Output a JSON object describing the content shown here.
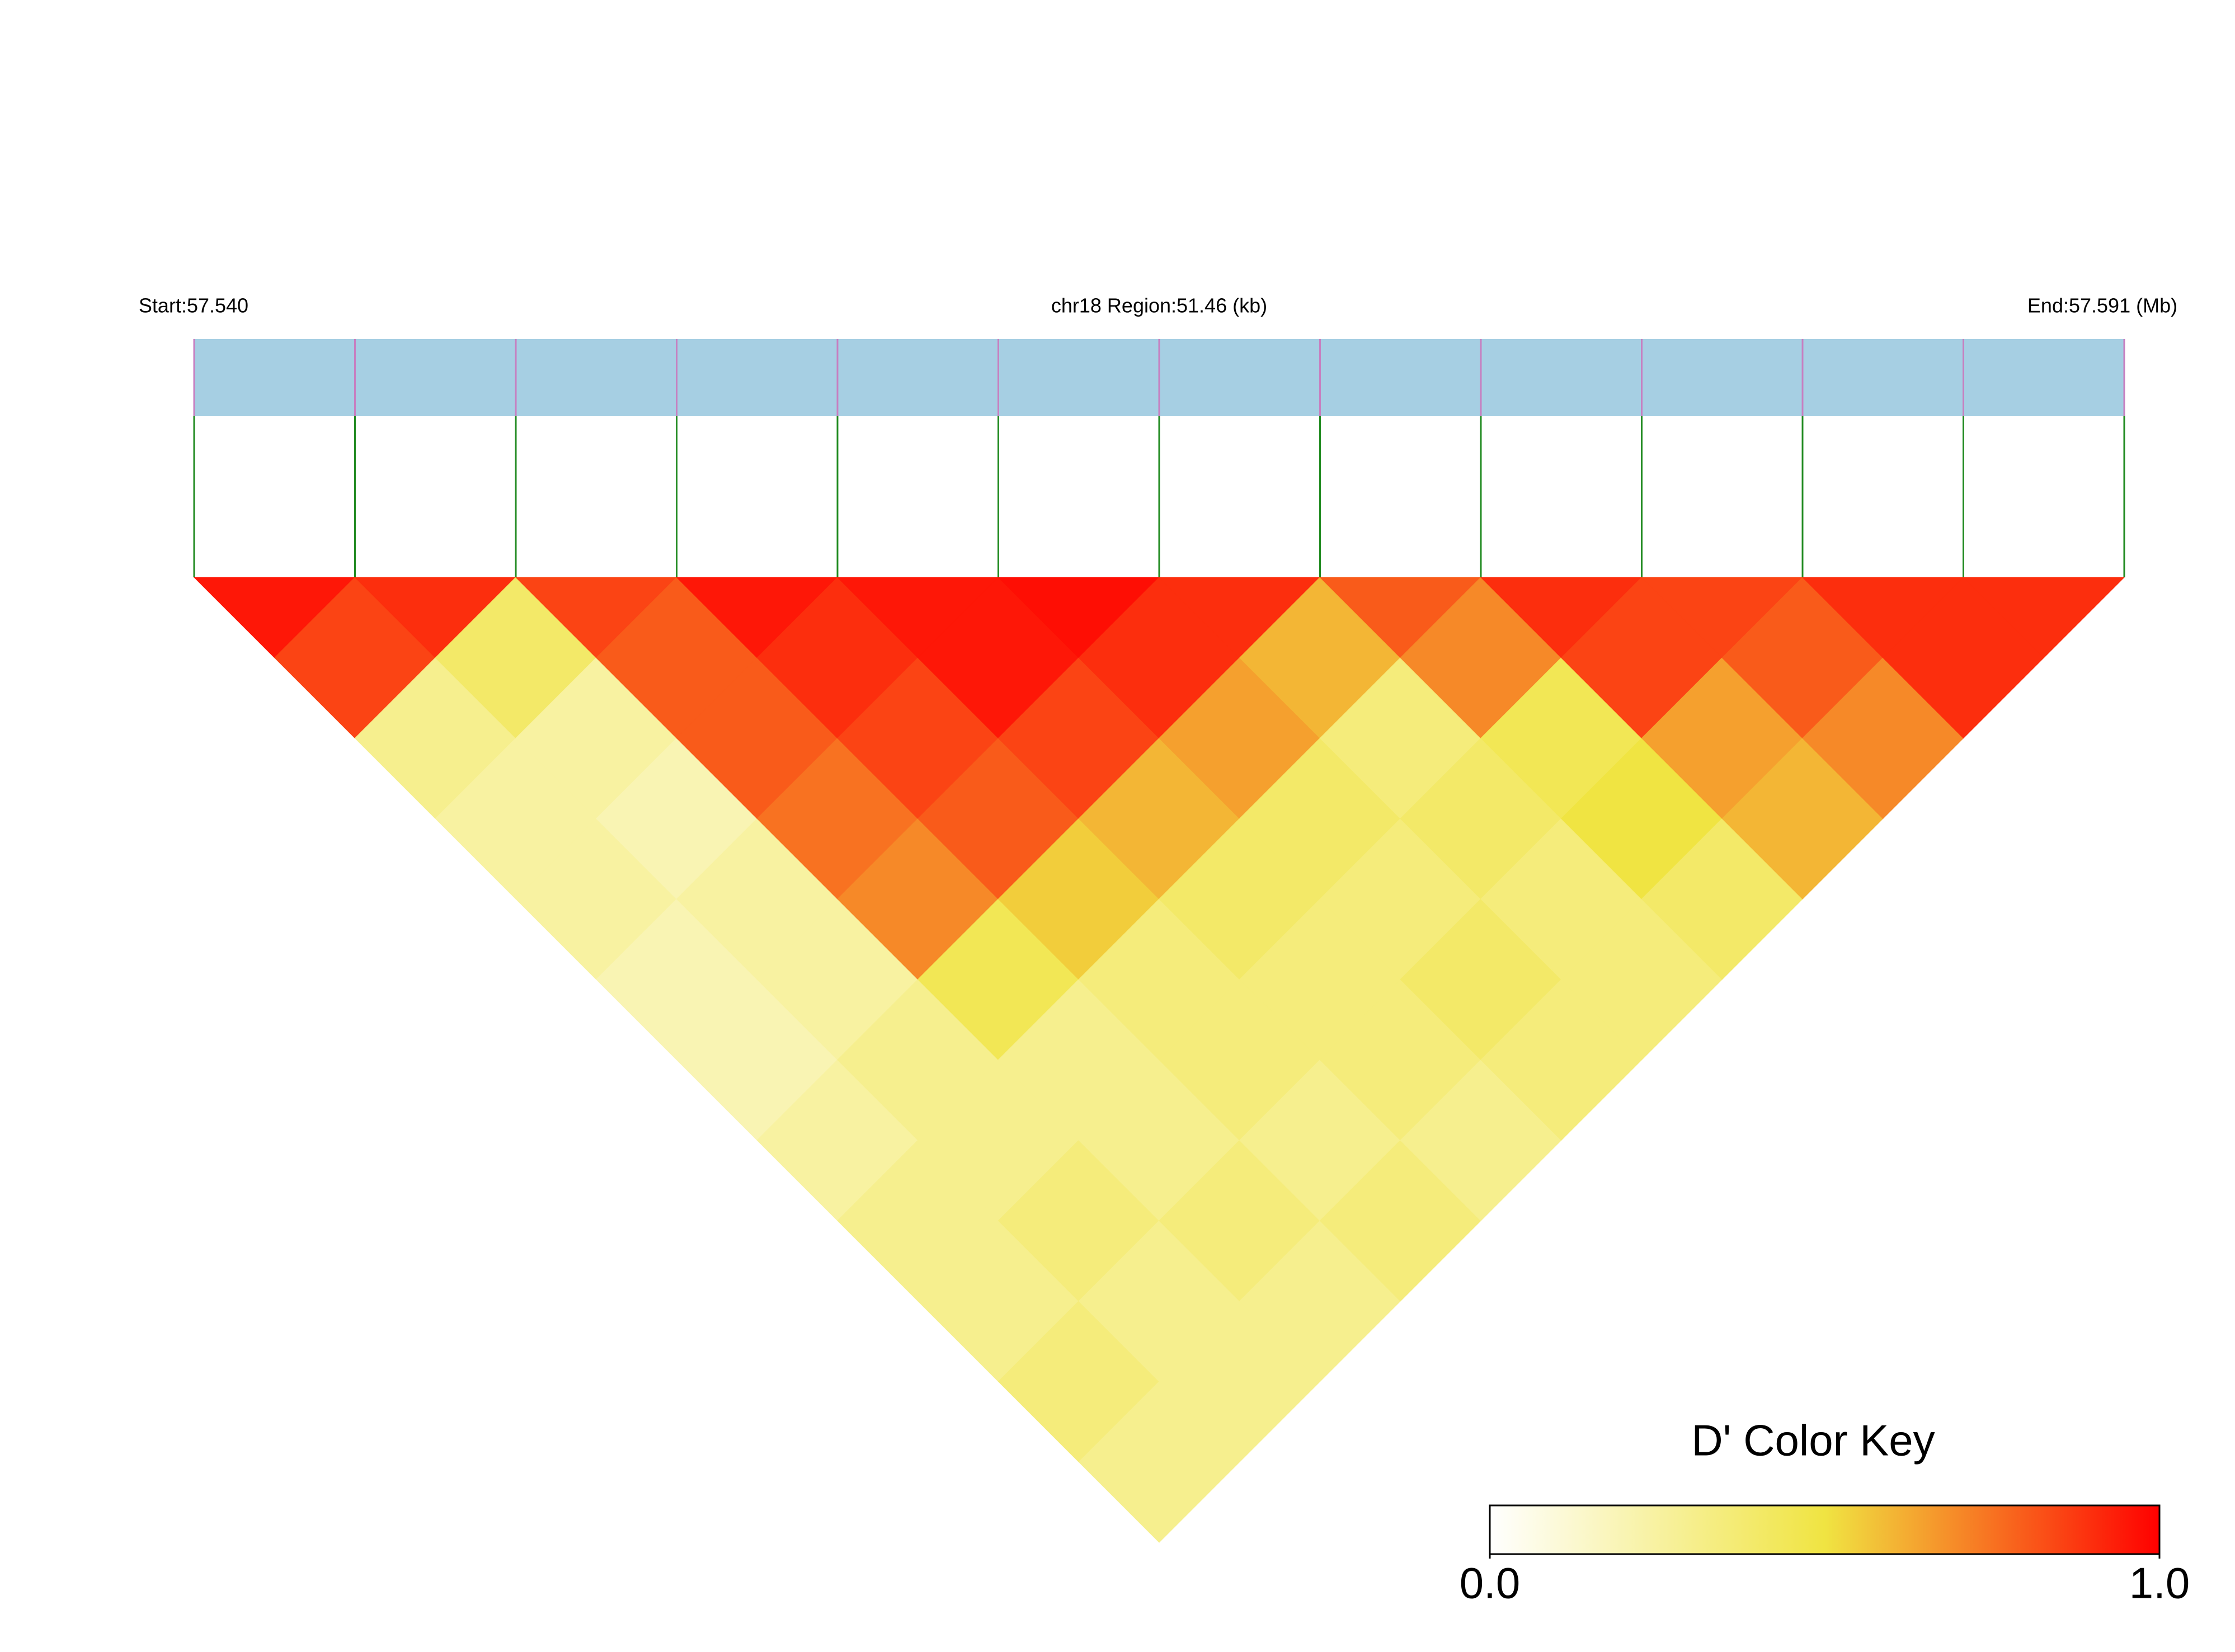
{
  "chart_data": {
    "type": "heatmap",
    "start_label": "Start:57.540",
    "region_label": "chr18 Region:51.46 (kb)",
    "end_label": "End:57.591 (Mb)",
    "key_title": "D' Color Key",
    "colorscale": [
      {
        "value": 0,
        "color": "#ffffff"
      },
      {
        "value": 0.5,
        "color": "#f0e442"
      },
      {
        "value": 1,
        "color": "#ff0000"
      }
    ],
    "key_ticks": [
      {
        "value": 0,
        "label": "0.0"
      },
      {
        "value": 1,
        "label": "1.0"
      }
    ],
    "dprime": [
      [
        0.95,
        0.85,
        0.3,
        0.25,
        0.25,
        0.2,
        0.2,
        0.25,
        0.3,
        0.3,
        0.35,
        0.3
      ],
      [
        0.9,
        0.4,
        0.25,
        0.2,
        0.25,
        0.25,
        0.3,
        0.3,
        0.35,
        0.3,
        0.3
      ],
      [
        0.85,
        0.8,
        0.8,
        0.75,
        0.7,
        0.45,
        0.3,
        0.3,
        0.35,
        0.3
      ],
      [
        0.95,
        0.9,
        0.85,
        0.8,
        0.55,
        0.35,
        0.35,
        0.3,
        0.35
      ],
      [
        0.95,
        0.95,
        0.85,
        0.6,
        0.4,
        0.35,
        0.35,
        0.3
      ],
      [
        0.97,
        0.9,
        0.65,
        0.4,
        0.35,
        0.4,
        0.35
      ],
      [
        0.9,
        0.6,
        0.35,
        0.4,
        0.35,
        0.35
      ],
      [
        0.8,
        0.7,
        0.45,
        0.5,
        0.4
      ],
      [
        0.9,
        0.85,
        0.65,
        0.6
      ],
      [
        0.85,
        0.8,
        0.7
      ],
      [
        0.9,
        0.9
      ],
      [
        0.9
      ]
    ]
  }
}
